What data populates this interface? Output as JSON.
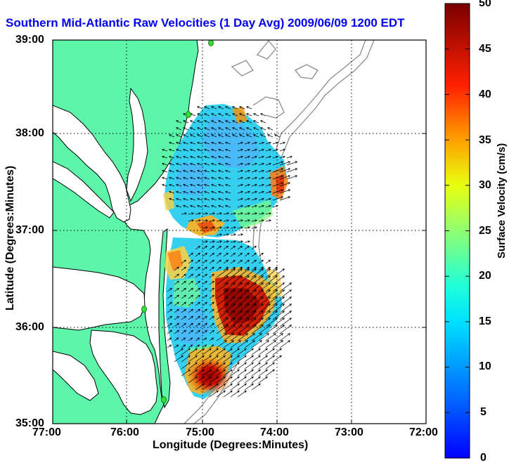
{
  "title": "Southern Mid-Atlantic Raw Velocities (1 Day Avg) 2009/06/09 1200 EDT",
  "x_axis": {
    "label": "Longitude (Degrees:Minutes)",
    "ticks": [
      "77:00",
      "76:00",
      "75:00",
      "74:00",
      "73:00",
      "72:00"
    ]
  },
  "y_axis": {
    "label": "Latitude (Degrees:Minutes)",
    "ticks": [
      "39:00",
      "38:00",
      "37:00",
      "36:00",
      "35:00"
    ]
  },
  "colorbar": {
    "label": "Surface Velocity (cm/s)",
    "ticks": [
      "50",
      "45",
      "40",
      "35",
      "30",
      "25",
      "20",
      "15",
      "10",
      "5",
      "0"
    ],
    "range": [
      0,
      50
    ],
    "colormap": "jet"
  },
  "map": {
    "lon_range": [
      -77,
      -72
    ],
    "lat_range": [
      35,
      39
    ],
    "grid": true,
    "land_color": "#5df5a9",
    "coast_color": "#000000",
    "bathymetry_color": "#8c8c8c",
    "station_color": "#33dd33"
  },
  "colors": {
    "title": "#0000ee",
    "frame": "#000000"
  }
}
